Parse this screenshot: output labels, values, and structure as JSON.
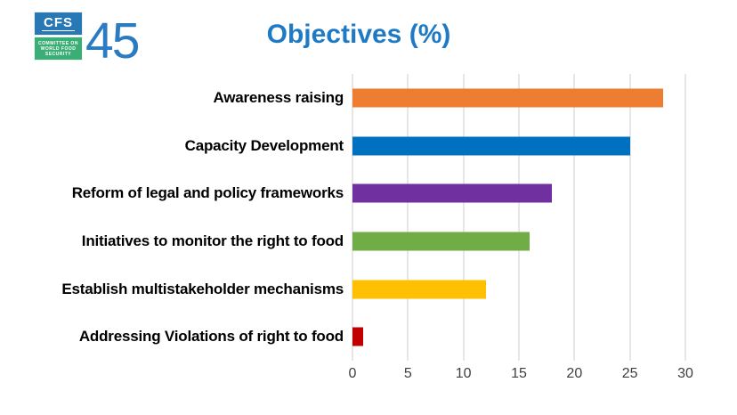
{
  "logo": {
    "acronym": "CFS",
    "subtitle_lines": [
      "COMMITTEE ON",
      "WORLD FOOD",
      "SECURITY"
    ],
    "session_number": "45",
    "blue": "#2878B5",
    "green": "#3BAE76",
    "number_color": "#2B7BC3"
  },
  "chart_data": {
    "type": "bar",
    "orientation": "horizontal",
    "title": "Objectives (%)",
    "title_color": "#1F7AC5",
    "categories": [
      "Awareness raising",
      "Capacity Development",
      "Reform of legal and policy frameworks",
      "Initiatives to monitor the right to food",
      "Establish multistakeholder mechanisms",
      "Addressing Violations of right to food"
    ],
    "values": [
      28,
      25,
      18,
      16,
      12,
      1
    ],
    "colors": [
      "#ED7D31",
      "#0070C0",
      "#7030A0",
      "#70AD47",
      "#FFC000",
      "#C00000"
    ],
    "xlabel": "",
    "ylabel": "",
    "xlim": [
      0,
      30
    ],
    "xticks": [
      0,
      5,
      10,
      15,
      20,
      25,
      30
    ],
    "grid": "vertical-only",
    "gridline_color": "#E6E6E6",
    "legend": "none"
  }
}
